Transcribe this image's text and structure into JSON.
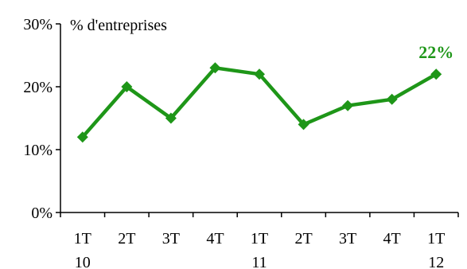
{
  "chart_data": {
    "type": "line",
    "ylabel": "% d'entreprises",
    "categories": [
      [
        "1T",
        "10"
      ],
      [
        "2T",
        ""
      ],
      [
        "3T",
        ""
      ],
      [
        "4T",
        ""
      ],
      [
        "1T",
        "11"
      ],
      [
        "2T",
        ""
      ],
      [
        "3T",
        ""
      ],
      [
        "4T",
        ""
      ],
      [
        "1T",
        "12"
      ]
    ],
    "ylim": [
      0,
      30
    ],
    "yticks": [
      "0%",
      "10%",
      "20%",
      "30%"
    ],
    "series": [
      {
        "values": [
          12,
          20,
          15,
          23,
          22,
          14,
          17,
          18,
          22
        ]
      }
    ],
    "end_label": "22%",
    "color": "#1e9618",
    "grid": false,
    "legend": "none"
  }
}
